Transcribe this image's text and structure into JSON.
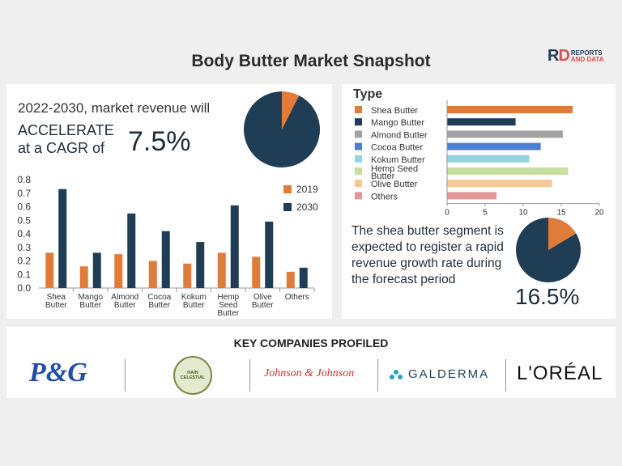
{
  "title": "Body Butter Market Snapshot",
  "logo": {
    "mark": "RD",
    "line1": "REPORTS",
    "line2": "AND DATA"
  },
  "headline": "2022-2030, market revenue will",
  "accelerate": "ACCELERATE",
  "cagr_prefix": "at a CAGR of",
  "cagr_value": "7.5%",
  "type_title": "Type",
  "segment_note": "The shea butter segment is expected to register a rapid revenue growth rate during the forecast period",
  "segment_share": "16.5%",
  "key_companies_title": "KEY COMPANIES PROFILED",
  "companies": [
    "P&G",
    "HAIN CELESTIAL",
    "Johnson & Johnson",
    "GALDERMA",
    "L'ORÉAL"
  ],
  "colors": {
    "orange": "#e07b39",
    "navy": "#1f3d55",
    "gray": "#a3a3a3",
    "blue": "#4b7fd1",
    "cyan": "#92d3e0",
    "lightgreen": "#c5dfa0",
    "peach": "#f7c795",
    "pink": "#e59696"
  },
  "chart_data": [
    {
      "type": "bar",
      "categories": [
        "Shea Butter",
        "Mango Butter",
        "Almond Butter",
        "Cocoa Butter",
        "Kokum Butter",
        "Hemp Seed Butter",
        "Olive Butter",
        "Others"
      ],
      "series": [
        {
          "name": "2019",
          "values": [
            0.26,
            0.16,
            0.25,
            0.2,
            0.18,
            0.26,
            0.23,
            0.12
          ],
          "color": "#e07b39"
        },
        {
          "name": "2030",
          "values": [
            0.73,
            0.26,
            0.55,
            0.42,
            0.34,
            0.61,
            0.49,
            0.15
          ],
          "color": "#1f3d55"
        }
      ],
      "ylim": [
        0,
        0.8
      ],
      "yticks": [
        "0.0",
        "0.1",
        "0.2",
        "0.3",
        "0.4",
        "0.5",
        "0.6",
        "0.7",
        "0.8"
      ],
      "legend": "right"
    },
    {
      "type": "bar",
      "orientation": "horizontal",
      "categories": [
        "Shea Butter",
        "Mango Butter",
        "Almond Butter",
        "Cocoa Butter",
        "Kokum Butter",
        "Hemp Seed Butter",
        "Olive Butter",
        "Others"
      ],
      "values": [
        16.5,
        9.0,
        15.2,
        12.3,
        10.8,
        15.9,
        13.8,
        6.5
      ],
      "colors": [
        "#e07b39",
        "#1f3d55",
        "#a3a3a3",
        "#4b7fd1",
        "#92d3e0",
        "#c5dfa0",
        "#f7c795",
        "#e59696"
      ],
      "xlim": [
        0,
        20
      ],
      "xticks": [
        "0",
        "5",
        "10",
        "15",
        "20"
      ],
      "legend": "left"
    },
    {
      "type": "pie",
      "values": [
        7.5,
        92.5
      ],
      "colors": [
        "#e07b39",
        "#1f3d55"
      ]
    },
    {
      "type": "pie",
      "values": [
        16.5,
        83.5
      ],
      "colors": [
        "#e07b39",
        "#1f3d55"
      ]
    }
  ]
}
